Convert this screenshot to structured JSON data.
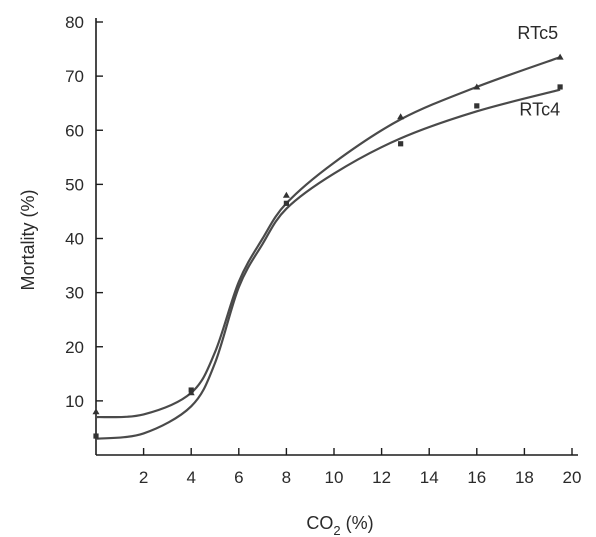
{
  "chart_data": {
    "type": "line",
    "xlabel": "CO",
    "xlabel_sub": "2",
    "xlabel_suffix": " (%)",
    "ylabel": "Mortality (%)",
    "xlim": [
      0,
      20
    ],
    "ylim": [
      0,
      80
    ],
    "x_ticks": [
      2,
      4,
      6,
      8,
      10,
      12,
      14,
      16,
      18,
      20
    ],
    "y_ticks": [
      10,
      20,
      30,
      40,
      50,
      60,
      70,
      80
    ],
    "grid": false,
    "legend": "none",
    "series": [
      {
        "name": "RTc5",
        "curve": [
          {
            "x": 0,
            "y": 7
          },
          {
            "x": 2,
            "y": 7.5
          },
          {
            "x": 4,
            "y": 11.5
          },
          {
            "x": 5,
            "y": 19
          },
          {
            "x": 6,
            "y": 32
          },
          {
            "x": 7,
            "y": 40
          },
          {
            "x": 8,
            "y": 46.5
          },
          {
            "x": 10,
            "y": 54
          },
          {
            "x": 12.8,
            "y": 62
          },
          {
            "x": 16,
            "y": 68
          },
          {
            "x": 19.5,
            "y": 73.5
          }
        ],
        "points": [
          {
            "x": 0,
            "y": 8
          },
          {
            "x": 4,
            "y": 11.5
          },
          {
            "x": 8,
            "y": 48
          },
          {
            "x": 12.8,
            "y": 62.5
          },
          {
            "x": 16,
            "y": 68
          },
          {
            "x": 19.5,
            "y": 73.5
          }
        ]
      },
      {
        "name": "RTc4",
        "curve": [
          {
            "x": 0,
            "y": 3
          },
          {
            "x": 2,
            "y": 4
          },
          {
            "x": 4,
            "y": 9
          },
          {
            "x": 5,
            "y": 17
          },
          {
            "x": 6,
            "y": 31
          },
          {
            "x": 7,
            "y": 39
          },
          {
            "x": 8,
            "y": 45.5
          },
          {
            "x": 10,
            "y": 52
          },
          {
            "x": 12.8,
            "y": 58.5
          },
          {
            "x": 16,
            "y": 63.5
          },
          {
            "x": 19.5,
            "y": 67.5
          }
        ],
        "points": [
          {
            "x": 0,
            "y": 3.5
          },
          {
            "x": 4,
            "y": 12
          },
          {
            "x": 8,
            "y": 46.5
          },
          {
            "x": 12.8,
            "y": 57.5
          },
          {
            "x": 16,
            "y": 64.5
          },
          {
            "x": 19.5,
            "y": 68
          }
        ]
      }
    ]
  }
}
